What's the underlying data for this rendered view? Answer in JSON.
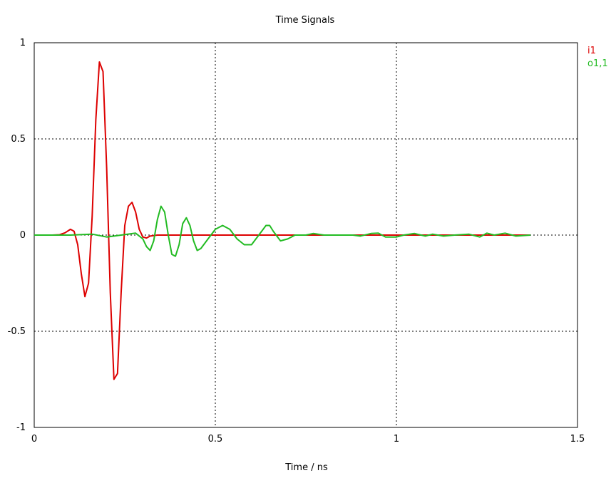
{
  "chart_data": {
    "type": "line",
    "title": "Time Signals",
    "xlabel": "Time / ns",
    "ylabel": "",
    "xlim": [
      0,
      1.5
    ],
    "ylim": [
      -1,
      1
    ],
    "xticks": [
      0,
      0.5,
      1,
      1.5
    ],
    "xtick_labels": [
      "0",
      "0.5",
      "1",
      "1.5"
    ],
    "yticks": [
      1,
      0.5,
      0,
      -0.5,
      -1
    ],
    "ytick_labels": [
      "1",
      "0.5",
      "0",
      "-0.5",
      "-1"
    ],
    "grid": true,
    "legend_position": "top-right outside",
    "series": [
      {
        "name": "i1",
        "color": "#dd0000",
        "points": [
          [
            0.0,
            0.0
          ],
          [
            0.05,
            0.0
          ],
          [
            0.07,
            0.002
          ],
          [
            0.085,
            0.012
          ],
          [
            0.1,
            0.03
          ],
          [
            0.11,
            0.02
          ],
          [
            0.12,
            -0.05
          ],
          [
            0.13,
            -0.2
          ],
          [
            0.14,
            -0.32
          ],
          [
            0.15,
            -0.25
          ],
          [
            0.16,
            0.1
          ],
          [
            0.17,
            0.6
          ],
          [
            0.18,
            0.9
          ],
          [
            0.19,
            0.85
          ],
          [
            0.2,
            0.35
          ],
          [
            0.21,
            -0.3
          ],
          [
            0.22,
            -0.75
          ],
          [
            0.23,
            -0.72
          ],
          [
            0.24,
            -0.3
          ],
          [
            0.25,
            0.05
          ],
          [
            0.26,
            0.15
          ],
          [
            0.27,
            0.17
          ],
          [
            0.28,
            0.12
          ],
          [
            0.29,
            0.03
          ],
          [
            0.3,
            -0.01
          ],
          [
            0.31,
            -0.015
          ],
          [
            0.32,
            -0.005
          ],
          [
            0.34,
            0.0
          ],
          [
            0.4,
            0.0
          ],
          [
            0.6,
            0.0
          ],
          [
            1.0,
            0.0
          ],
          [
            1.37,
            0.0
          ]
        ]
      },
      {
        "name": "o1,1",
        "color": "#22bb22",
        "points": [
          [
            0.0,
            0.0
          ],
          [
            0.1,
            0.0
          ],
          [
            0.16,
            0.005
          ],
          [
            0.2,
            -0.01
          ],
          [
            0.24,
            0.0
          ],
          [
            0.28,
            0.01
          ],
          [
            0.3,
            -0.02
          ],
          [
            0.31,
            -0.06
          ],
          [
            0.32,
            -0.08
          ],
          [
            0.33,
            -0.03
          ],
          [
            0.34,
            0.08
          ],
          [
            0.35,
            0.15
          ],
          [
            0.36,
            0.12
          ],
          [
            0.37,
            0.0
          ],
          [
            0.38,
            -0.1
          ],
          [
            0.39,
            -0.11
          ],
          [
            0.4,
            -0.05
          ],
          [
            0.41,
            0.06
          ],
          [
            0.42,
            0.09
          ],
          [
            0.43,
            0.05
          ],
          [
            0.44,
            -0.03
          ],
          [
            0.45,
            -0.08
          ],
          [
            0.46,
            -0.07
          ],
          [
            0.48,
            -0.02
          ],
          [
            0.5,
            0.03
          ],
          [
            0.52,
            0.05
          ],
          [
            0.54,
            0.03
          ],
          [
            0.56,
            -0.02
          ],
          [
            0.58,
            -0.05
          ],
          [
            0.6,
            -0.05
          ],
          [
            0.62,
            0.0
          ],
          [
            0.64,
            0.05
          ],
          [
            0.65,
            0.05
          ],
          [
            0.66,
            0.02
          ],
          [
            0.68,
            -0.03
          ],
          [
            0.7,
            -0.02
          ],
          [
            0.72,
            0.0
          ],
          [
            0.75,
            0.0
          ],
          [
            0.77,
            0.008
          ],
          [
            0.8,
            0.0
          ],
          [
            0.85,
            0.0
          ],
          [
            0.88,
            0.0
          ],
          [
            0.9,
            -0.005
          ],
          [
            0.93,
            0.008
          ],
          [
            0.95,
            0.01
          ],
          [
            0.97,
            -0.01
          ],
          [
            1.0,
            -0.01
          ],
          [
            1.02,
            0.0
          ],
          [
            1.05,
            0.008
          ],
          [
            1.08,
            -0.005
          ],
          [
            1.1,
            0.005
          ],
          [
            1.13,
            -0.005
          ],
          [
            1.16,
            0.0
          ],
          [
            1.2,
            0.005
          ],
          [
            1.23,
            -0.01
          ],
          [
            1.25,
            0.01
          ],
          [
            1.27,
            0.0
          ],
          [
            1.3,
            0.01
          ],
          [
            1.33,
            -0.005
          ],
          [
            1.37,
            0.0
          ]
        ]
      }
    ]
  }
}
